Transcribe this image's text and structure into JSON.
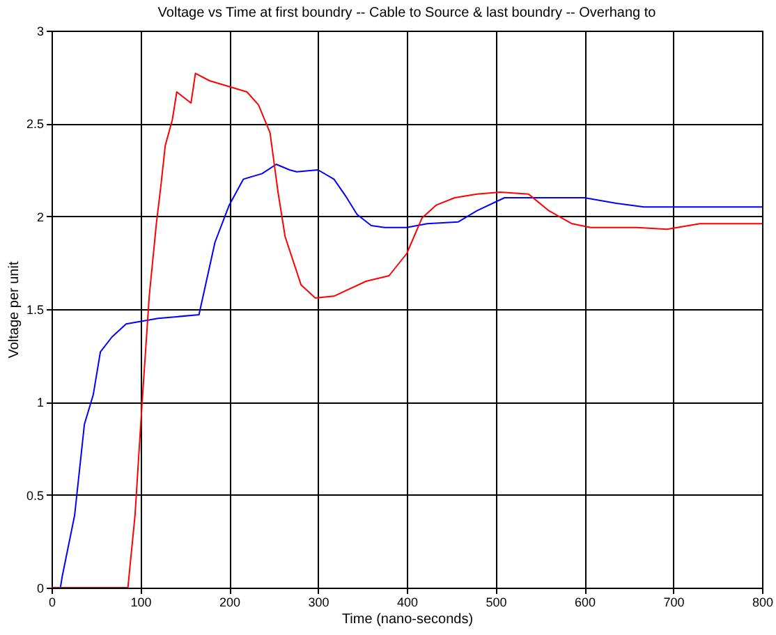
{
  "chart_data": {
    "type": "line",
    "title": "Voltage vs Time at first boundry -- Cable to Source & last boundry -- Overhang to",
    "xlabel": "Time (nano-seconds)",
    "ylabel": "Voltage per unit",
    "xlim": [
      0,
      800
    ],
    "ylim": [
      0,
      3
    ],
    "xticks": [
      0,
      100,
      200,
      300,
      400,
      500,
      600,
      700,
      800
    ],
    "yticks": [
      0,
      0.5,
      1,
      1.5,
      2,
      2.5,
      3
    ],
    "grid": true,
    "series": [
      {
        "color": "#0000ff",
        "x": [
          0,
          10,
          12,
          26,
          37,
          47,
          55,
          68,
          84,
          120,
          166,
          184,
          200,
          216,
          237,
          253,
          268,
          276,
          300,
          318,
          331,
          344,
          360,
          375,
          400,
          423,
          458,
          479,
          510,
          514,
          600,
          636,
          667,
          800
        ],
        "values": [
          0,
          0,
          0.06,
          0.39,
          0.88,
          1.04,
          1.27,
          1.35,
          1.42,
          1.45,
          1.47,
          1.86,
          2.06,
          2.2,
          2.23,
          2.28,
          2.25,
          2.24,
          2.25,
          2.2,
          2.11,
          2.01,
          1.95,
          1.94,
          1.94,
          1.96,
          1.97,
          2.03,
          2.1,
          2.1,
          2.1,
          2.07,
          2.05,
          2.05
        ]
      },
      {
        "color": "#ff0000",
        "x": [
          0,
          86,
          88,
          94,
          102,
          110,
          118,
          123,
          128,
          136,
          141,
          157,
          162,
          178,
          199,
          220,
          233,
          246,
          255,
          263,
          281,
          297,
          318,
          354,
          380,
          400,
          417,
          433,
          454,
          479,
          505,
          537,
          560,
          586,
          607,
          659,
          693,
          730,
          800
        ],
        "values": [
          0,
          0,
          0.1,
          0.39,
          1.0,
          1.57,
          1.96,
          2.16,
          2.38,
          2.52,
          2.67,
          2.61,
          2.77,
          2.73,
          2.7,
          2.67,
          2.6,
          2.45,
          2.13,
          1.89,
          1.63,
          1.56,
          1.57,
          1.65,
          1.68,
          1.8,
          1.99,
          2.06,
          2.1,
          2.12,
          2.13,
          2.12,
          2.03,
          1.96,
          1.94,
          1.94,
          1.93,
          1.96,
          1.96
        ]
      }
    ]
  }
}
